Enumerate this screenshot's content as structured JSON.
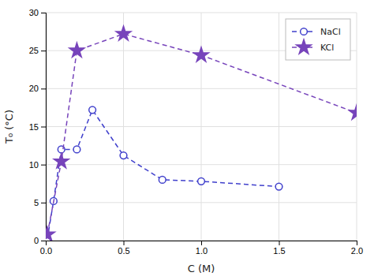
{
  "chart_data": {
    "type": "line",
    "xlabel": "C (M)",
    "ylabel": "T₀ (°C)",
    "series": [
      {
        "name": "NaCl",
        "color": "#4040CC",
        "marker": "circle",
        "line_style": "dashed",
        "x": [
          0.01,
          0.05,
          0.1,
          0.2,
          0.3,
          0.5,
          0.75,
          1.0,
          1.5
        ],
        "values": [
          0.2,
          5.2,
          12.0,
          12.0,
          17.2,
          11.2,
          8.0,
          7.8,
          7.1
        ]
      },
      {
        "name": "KCl",
        "color": "#7744BB",
        "marker": "star",
        "line_style": "dashed",
        "x": [
          0.01,
          0.1,
          0.2,
          0.5,
          1.0,
          2.0
        ],
        "values": [
          0.8,
          10.4,
          25.0,
          27.2,
          24.4,
          16.8
        ]
      }
    ],
    "xlim": [
      0,
      2.0
    ],
    "ylim": [
      0,
      30
    ],
    "xticks": [
      {
        "value": 0,
        "label": "0.0"
      },
      0.5,
      {
        "value": 1.0,
        "label": "1.0"
      },
      1.5,
      {
        "value": 2.0,
        "label": "2.0"
      }
    ],
    "yticks": [
      0,
      5,
      10,
      15,
      20,
      25,
      30
    ],
    "grid": true,
    "legend": "upper right"
  }
}
